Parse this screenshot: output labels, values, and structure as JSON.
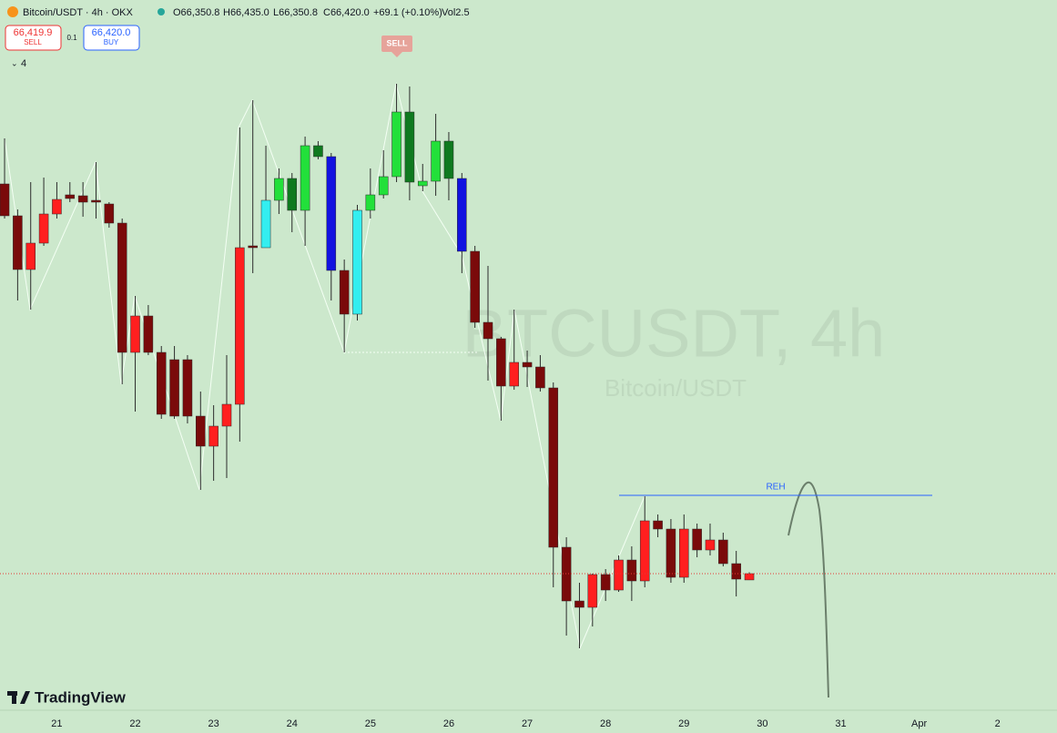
{
  "chart_data": {
    "type": "candlestick",
    "header": {
      "symbol": "Bitcoin/USDT · 4h · OKX",
      "open": "O66,350.8",
      "high": "H66,435.0",
      "low": "L66,350.8",
      "close": "C66,420.0",
      "change": "+69.1 (+0.10%)",
      "volume": "Vol2.5"
    },
    "trade": {
      "sell_price": "66,419.9",
      "sell_label": "SELL",
      "quantity": "0.1",
      "buy_price": "66,420.0",
      "buy_label": "BUY",
      "indicators": "4"
    },
    "watermark": {
      "symbol": "BTCUSDT, 4h",
      "name": "Bitcoin/USDT"
    },
    "brand": "TradingView",
    "annotations": {
      "signal": "SELL",
      "level": {
        "label": "REH",
        "value": 67280
      }
    },
    "open": [
      70700,
      70350,
      69760,
      70050,
      70370,
      70580,
      70570,
      70520,
      70480,
      70270,
      68850,
      69250,
      68850,
      68770,
      68770,
      68150,
      67820,
      68040,
      68280,
      70020,
      70000,
      70520,
      70760,
      70410,
      71120,
      71000,
      69750,
      69270,
      70410,
      70580,
      70780,
      71490,
      70680,
      70730,
      71170,
      70760,
      69960,
      69180,
      69000,
      68480,
      68740,
      68690,
      68460,
      66710,
      66120,
      66050,
      66410,
      66240,
      66570,
      66340,
      67000,
      66910,
      66380,
      66910,
      66680,
      66790,
      66530,
      66350.8
    ],
    "high": [
      71200,
      70420,
      70720,
      70770,
      70720,
      70720,
      70720,
      70940,
      70500,
      70320,
      69470,
      69370,
      68920,
      68920,
      68820,
      68420,
      68270,
      68820,
      71320,
      71620,
      71120,
      70870,
      70820,
      71220,
      71170,
      71040,
      69870,
      70470,
      70870,
      71070,
      71800,
      71770,
      70920,
      71470,
      71270,
      70820,
      70020,
      69800,
      69020,
      69320,
      68870,
      68820,
      68520,
      66820,
      66320,
      66420,
      66470,
      66620,
      66720,
      67270,
      67070,
      67020,
      67070,
      66970,
      66970,
      66870,
      66670,
      66435.0
    ],
    "low": [
      70320,
      69420,
      69320,
      70020,
      70320,
      70500,
      70340,
      70320,
      70220,
      68500,
      68200,
      68820,
      68120,
      68120,
      68070,
      67340,
      67440,
      67470,
      67870,
      69720,
      70000,
      70370,
      70170,
      70020,
      70970,
      69420,
      68850,
      69200,
      70320,
      70540,
      70720,
      70520,
      70620,
      70570,
      70520,
      69720,
      69120,
      68540,
      68100,
      68440,
      68470,
      68420,
      66270,
      65740,
      65600,
      65840,
      66120,
      66220,
      66120,
      66270,
      66820,
      66320,
      66320,
      66600,
      66620,
      66500,
      66170,
      66350.8
    ],
    "close": [
      70350,
      69760,
      70050,
      70370,
      70530,
      70540,
      70500,
      70500,
      70270,
      68850,
      69250,
      68850,
      68170,
      68150,
      68150,
      67820,
      68040,
      68280,
      70000,
      70000,
      70520,
      70760,
      70410,
      71120,
      71000,
      69750,
      69270,
      70410,
      70580,
      70780,
      71490,
      70720,
      70730,
      71170,
      70760,
      69960,
      69180,
      69000,
      68480,
      68740,
      68690,
      68460,
      66710,
      66120,
      66050,
      66410,
      66240,
      66570,
      66340,
      67000,
      66910,
      66380,
      66910,
      66680,
      66790,
      66530,
      66360,
      66420.0
    ],
    "colors": [
      "#7a0a0a",
      "#7a0a0a",
      "#ff1f1f",
      "#ff1f1f",
      "#ff1f1f",
      "#7a0a0a",
      "#7a0a0a",
      "#7a0a0a",
      "#7a0a0a",
      "#7a0a0a",
      "#ff1f1f",
      "#7a0a0a",
      "#7a0a0a",
      "#7a0a0a",
      "#7a0a0a",
      "#7a0a0a",
      "#ff1f1f",
      "#ff1f1f",
      "#ff1f1f",
      "#7a0a0a",
      "#33eef0",
      "#22e03a",
      "#0f7a1f",
      "#22e03a",
      "#0f7a1f",
      "#1212e0",
      "#7a0a0a",
      "#33eef0",
      "#22e03a",
      "#22e03a",
      "#22e03a",
      "#0f7a1f",
      "#22e03a",
      "#22e03a",
      "#0f7a1f",
      "#1212e0",
      "#7a0a0a",
      "#7a0a0a",
      "#7a0a0a",
      "#ff1f1f",
      "#7a0a0a",
      "#7a0a0a",
      "#7a0a0a",
      "#7a0a0a",
      "#7a0a0a",
      "#ff1f1f",
      "#7a0a0a",
      "#ff1f1f",
      "#7a0a0a",
      "#ff1f1f",
      "#7a0a0a",
      "#7a0a0a",
      "#ff1f1f",
      "#7a0a0a",
      "#ff1f1f",
      "#7a0a0a",
      "#7a0a0a",
      "#ff1f1f"
    ],
    "xlim": [
      -0.35,
      80.55
    ],
    "xticks": [
      {
        "value": 4,
        "label": "21"
      },
      {
        "value": 10,
        "label": "22"
      },
      {
        "value": 16,
        "label": "23"
      },
      {
        "value": 22,
        "label": "24"
      },
      {
        "value": 28,
        "label": "25"
      },
      {
        "value": 34,
        "label": "26"
      },
      {
        "value": 40,
        "label": "27"
      },
      {
        "value": 46,
        "label": "28"
      },
      {
        "value": 52,
        "label": "29"
      },
      {
        "value": 58,
        "label": "30"
      },
      {
        "value": 64,
        "label": "31"
      },
      {
        "value": 70,
        "label": "Apr"
      },
      {
        "value": 76,
        "label": "2"
      }
    ],
    "ylim": [
      64920,
      72720
    ]
  }
}
